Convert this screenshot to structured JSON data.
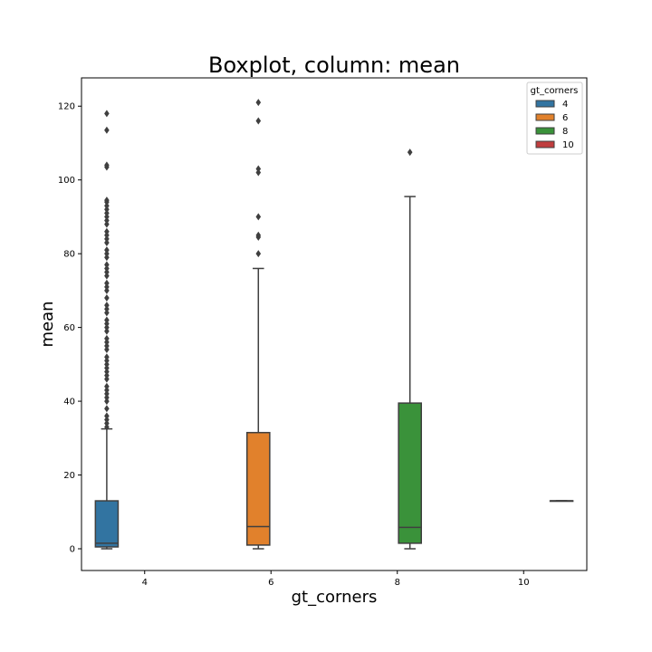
{
  "chart_data": {
    "type": "boxplot",
    "title": "Boxplot, column: mean",
    "xlabel": "gt_corners",
    "ylabel": "mean",
    "categories": [
      "4",
      "6",
      "8",
      "10"
    ],
    "ylim": [
      -6,
      127
    ],
    "yticks": [
      0,
      20,
      40,
      60,
      80,
      100,
      120
    ],
    "legend": {
      "title": "gt_corners",
      "position": "top-right",
      "entries": [
        "4",
        "6",
        "8",
        "10"
      ]
    },
    "colors": {
      "4": "#3274a1",
      "6": "#e1812c",
      "8": "#3a923a",
      "10": "#c03d3e"
    },
    "series": [
      {
        "name": "4",
        "category": "4",
        "min": 0,
        "q1": 0.5,
        "median": 1.5,
        "q3": 13,
        "max": 32.5,
        "outliers": [
          33,
          34,
          35,
          36,
          38,
          40,
          41,
          42,
          43,
          44,
          46,
          47,
          48,
          49,
          50,
          51,
          52,
          54,
          55,
          56,
          57,
          59,
          60,
          61,
          62,
          64,
          65,
          66,
          68,
          70,
          71,
          72,
          74,
          75,
          76,
          77,
          79,
          80,
          81,
          83,
          84,
          85,
          86,
          88,
          89,
          90,
          91,
          92,
          93,
          94,
          94.5,
          103.5,
          104,
          113.5,
          118
        ]
      },
      {
        "name": "6",
        "category": "6",
        "min": 0,
        "q1": 1,
        "median": 6,
        "q3": 31.5,
        "max": 76,
        "outliers": [
          80,
          84.5,
          85,
          90,
          102,
          103,
          116,
          121
        ]
      },
      {
        "name": "8",
        "category": "8",
        "min": 0,
        "q1": 1.5,
        "median": 5.8,
        "q3": 39.5,
        "max": 95.5,
        "outliers": [
          107.5
        ]
      },
      {
        "name": "10",
        "category": "10",
        "min": 13,
        "q1": 13,
        "median": 13,
        "q3": 13,
        "max": 13,
        "outliers": []
      }
    ]
  }
}
